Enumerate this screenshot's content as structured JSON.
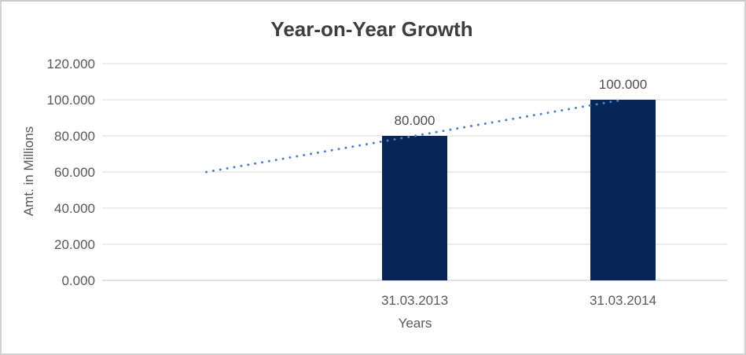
{
  "chart": {
    "title": "Year-on-Year Growth",
    "y_axis_title": "Amt. in Millions",
    "x_axis_title": "Years"
  },
  "chart_data": {
    "type": "bar",
    "title": "Year-on-Year Growth",
    "xlabel": "Years",
    "ylabel": "Amt. in Millions",
    "categories": [
      "31.03.2013",
      "31.03.2014"
    ],
    "values": [
      80,
      100
    ],
    "data_labels": [
      "80.000",
      "100.000"
    ],
    "ylim": [
      0,
      120
    ],
    "y_ticks": [
      {
        "value": 0,
        "label": "0.000"
      },
      {
        "value": 20,
        "label": "20.000"
      },
      {
        "value": 40,
        "label": "40.000"
      },
      {
        "value": 60,
        "label": "60.000"
      },
      {
        "value": 80,
        "label": "80.000"
      },
      {
        "value": 100,
        "label": "100.000"
      },
      {
        "value": 120,
        "label": "120.000"
      }
    ],
    "grid": "horizontal",
    "legend": "none",
    "trendline": {
      "style": "dotted",
      "start_value": 60,
      "end_value": 100
    },
    "colors": {
      "bar": "#082557",
      "trendline": "#4e81c8",
      "gridline": "#d9d9d9",
      "axis_line": "#c3c3c3",
      "label_text": "#595959",
      "title_text": "#3d3d3d"
    }
  }
}
